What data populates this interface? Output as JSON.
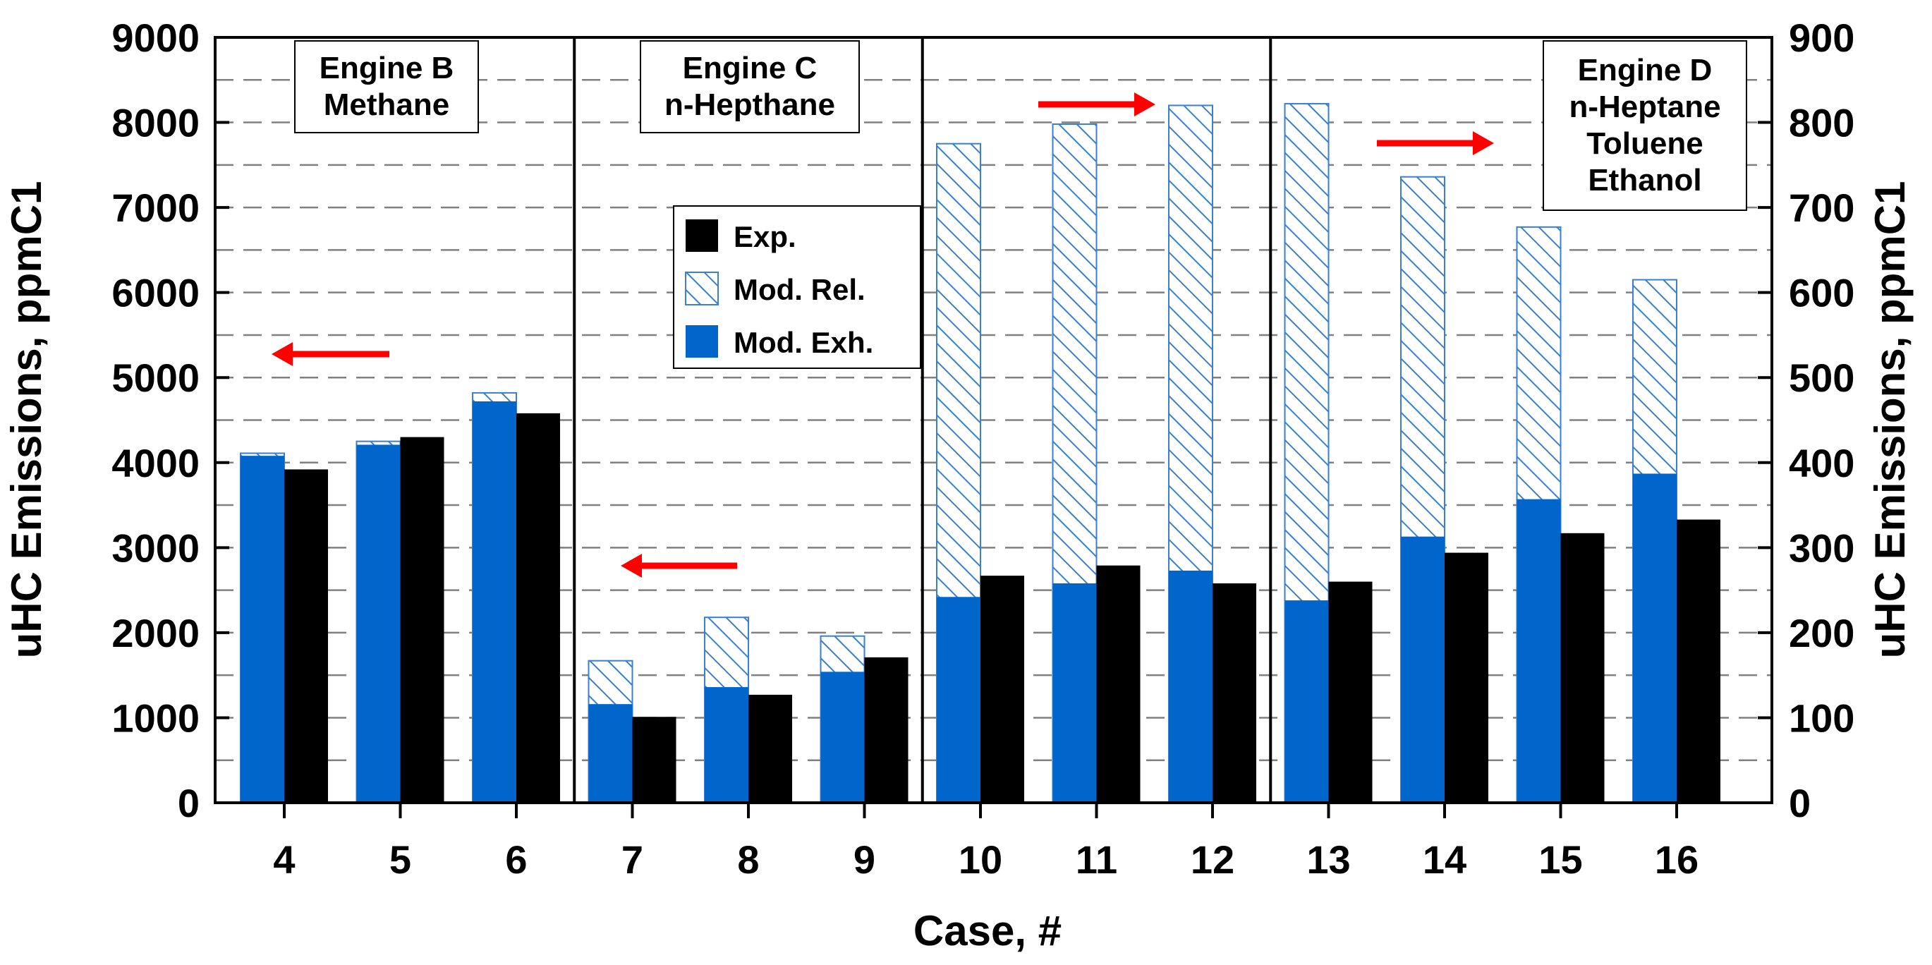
{
  "chart_data": {
    "type": "bar",
    "title": "",
    "xlabel": "Case, #",
    "ylabel_left": "uHC Emissions, ppmC1",
    "ylabel_right": "uHC Emissions, ppmC1",
    "ylim_left": [
      0,
      9000
    ],
    "ylim_right": [
      0,
      900
    ],
    "yticks_left": [
      "0",
      "1000",
      "2000",
      "3000",
      "4000",
      "5000",
      "6000",
      "7000",
      "8000",
      "9000"
    ],
    "yticks_right": [
      "0",
      "100",
      "200",
      "300",
      "400",
      "500",
      "600",
      "700",
      "800",
      "900"
    ],
    "grid": "horizontal dashed",
    "legend_position": "center",
    "colors": {
      "exp": "#000000",
      "mod_exh": "#0066cc",
      "mod_rel_hatch": "#3a7fd0",
      "arrow": "#ff0000"
    },
    "series": [
      {
        "name": "Exp.",
        "style": "solid-black"
      },
      {
        "name": "Mod. Rel.",
        "style": "hatched-blue"
      },
      {
        "name": "Mod. Exh.",
        "style": "solid-blue"
      }
    ],
    "cases": [
      {
        "label": "4",
        "axis": "left",
        "mod_exh": 4080,
        "mod_rel": 4110,
        "exp": 3920
      },
      {
        "label": "5",
        "axis": "left",
        "mod_exh": 4210,
        "mod_rel": 4250,
        "exp": 4300
      },
      {
        "label": "6",
        "axis": "left",
        "mod_exh": 4720,
        "mod_rel": 4820,
        "exp": 4580
      },
      {
        "label": "7",
        "axis": "left",
        "mod_exh": 1160,
        "mod_rel": 1670,
        "exp": 1010
      },
      {
        "label": "8",
        "axis": "left",
        "mod_exh": 1360,
        "mod_rel": 2180,
        "exp": 1270
      },
      {
        "label": "9",
        "axis": "left",
        "mod_exh": 1540,
        "mod_rel": 1960,
        "exp": 1710
      },
      {
        "label": "10",
        "axis": "right",
        "mod_exh": 242,
        "mod_rel": 775,
        "exp": 267
      },
      {
        "label": "11",
        "axis": "right",
        "mod_exh": 258,
        "mod_rel": 798,
        "exp": 279
      },
      {
        "label": "12",
        "axis": "right",
        "mod_exh": 273,
        "mod_rel": 820,
        "exp": 258
      },
      {
        "label": "13",
        "axis": "right",
        "mod_exh": 238,
        "mod_rel": 822,
        "exp": 260
      },
      {
        "label": "14",
        "axis": "right",
        "mod_exh": 313,
        "mod_rel": 736,
        "exp": 294
      },
      {
        "label": "15",
        "axis": "right",
        "mod_exh": 357,
        "mod_rel": 677,
        "exp": 317
      },
      {
        "label": "16",
        "axis": "right",
        "mod_exh": 387,
        "mod_rel": 615,
        "exp": 333
      }
    ],
    "groups": [
      {
        "name": "engine-b",
        "lines": [
          "Engine B",
          "Methane"
        ]
      },
      {
        "name": "engine-c",
        "lines": [
          "Engine C",
          "n-Hepthane"
        ]
      },
      {
        "name": "engine-d",
        "lines": [
          "Engine D",
          "n-Heptane",
          "Toluene",
          "Ethanol"
        ]
      }
    ],
    "annotations": [
      {
        "name": "arrow-left-engine-b",
        "direction": "left",
        "meaning": "left axis"
      },
      {
        "name": "arrow-left-engine-c",
        "direction": "left",
        "meaning": "left axis"
      },
      {
        "name": "arrow-right-case-11-12",
        "direction": "right",
        "meaning": "right axis"
      },
      {
        "name": "arrow-right-engine-d",
        "direction": "right",
        "meaning": "right axis"
      }
    ]
  }
}
